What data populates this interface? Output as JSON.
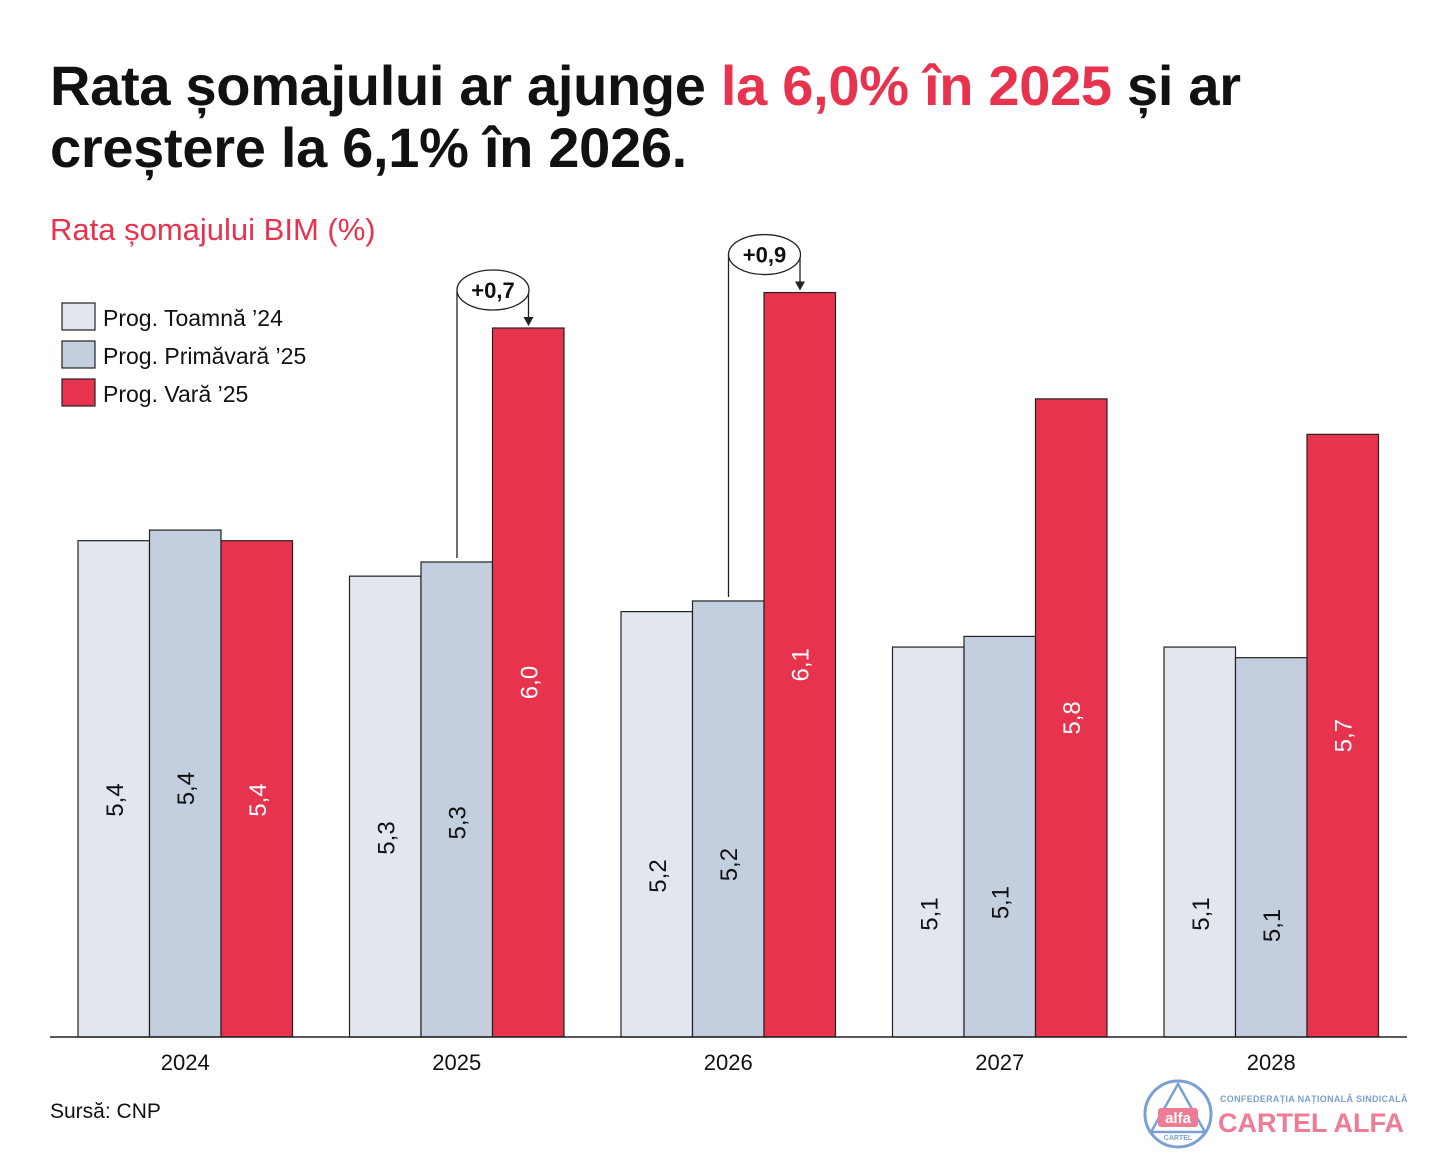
{
  "title": {
    "part1": "Rata șomajului ar ajunge ",
    "highlight": "la 6,0% în 2025",
    "part2": " și ar creștere la 6,1% în 2026."
  },
  "subtitle": "Rata șomajului BIM (%)",
  "source": "Sursă: CNP",
  "logo": {
    "mark_top": "alfa",
    "mark_bottom": "CARTEL",
    "top_line": "CONFEDERAȚIA NAȚIONALĂ SINDICALĂ",
    "name": "CARTEL ALFA"
  },
  "colors": {
    "accent": "#e8334f",
    "series": [
      "#e1e6ef",
      "#c3cedf",
      "#e8334f"
    ]
  },
  "chart_data": {
    "type": "bar",
    "title": "Rata șomajului BIM (%)",
    "categories": [
      "2024",
      "2025",
      "2026",
      "2027",
      "2028"
    ],
    "series": [
      {
        "name": "Prog. Toamnă ’24",
        "values": [
          5.4,
          5.3,
          5.2,
          5.1,
          5.1
        ],
        "labels": [
          "5,4",
          "5,3",
          "5,2",
          "5,1",
          "5,1"
        ]
      },
      {
        "name": "Prog. Primăvară ’25",
        "values": [
          5.43,
          5.34,
          5.23,
          5.13,
          5.07
        ],
        "labels": [
          "5,4",
          "5,3",
          "5,2",
          "5,1",
          "5,1"
        ]
      },
      {
        "name": "Prog. Vară ’25",
        "values": [
          5.4,
          6.0,
          6.1,
          5.8,
          5.7
        ],
        "labels": [
          "5,4",
          "6,0",
          "6,1",
          "5,8",
          "5,7"
        ]
      }
    ],
    "annotations": [
      {
        "category": "2025",
        "text": "+0,7",
        "from_series": 1,
        "to_series": 2
      },
      {
        "category": "2026",
        "text": "+0,9",
        "from_series": 1,
        "to_series": 2
      }
    ],
    "ylim": [
      4.0,
      6.6
    ],
    "xlabel": "",
    "ylabel": "",
    "grid": false,
    "legend": "top-left"
  }
}
